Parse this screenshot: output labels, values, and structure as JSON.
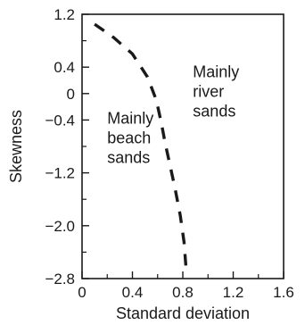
{
  "chart_data": {
    "type": "line",
    "title": "",
    "xlabel": "Standard deviation",
    "ylabel": "Skewness",
    "xlim": [
      0,
      1.6
    ],
    "ylim": [
      -2.8,
      1.2
    ],
    "x_ticks": [
      0,
      0.4,
      0.8,
      1.2,
      1.6
    ],
    "x_tick_labels": [
      "0",
      "0.4",
      "0.8",
      "1.2",
      "1.6"
    ],
    "x_minor_ticks": [
      0.2,
      0.6,
      1.0,
      1.4
    ],
    "y_ticks": [
      1.2,
      0.4,
      0,
      -0.4,
      -1.2,
      -2.0,
      -2.8
    ],
    "y_tick_labels": [
      "1.2",
      "0.4",
      "0",
      "−0.4",
      "−1.2",
      "−2.0",
      "−2.8"
    ],
    "y_minor_ticks": [
      0.8,
      -0.8,
      -1.6,
      -2.4
    ],
    "grid": false,
    "series": [
      {
        "line_style": "dashed",
        "color": "#1a1a1a",
        "x": [
          0.1,
          0.25,
          0.4,
          0.52,
          0.59,
          0.63,
          0.66,
          0.7,
          0.74,
          0.78,
          0.81,
          0.83
        ],
        "y": [
          1.05,
          0.85,
          0.6,
          0.25,
          -0.1,
          -0.45,
          -0.75,
          -1.1,
          -1.45,
          -1.85,
          -2.25,
          -2.75
        ]
      }
    ],
    "annotations": [
      {
        "lines": [
          "Mainly",
          "river",
          "sands"
        ],
        "x": 0.88,
        "y": -0.05
      },
      {
        "lines": [
          "Mainly",
          "beach",
          "sands"
        ],
        "x": 0.2,
        "y": -0.75
      }
    ]
  }
}
